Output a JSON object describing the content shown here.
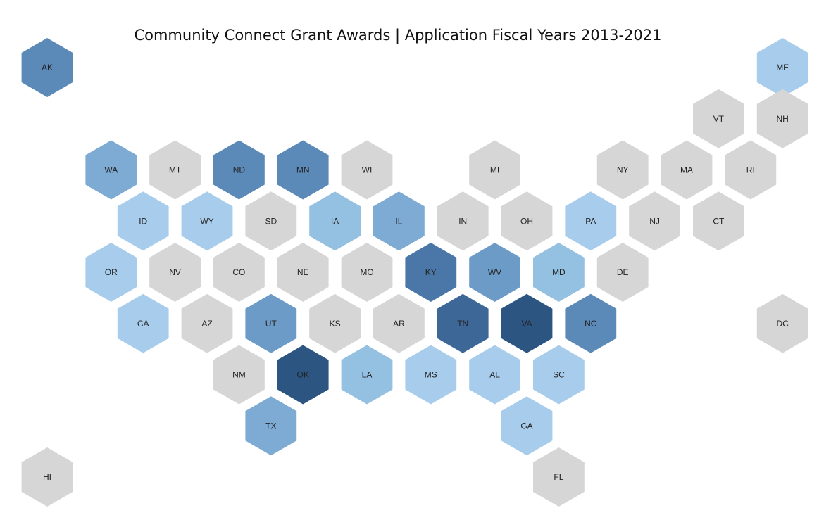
{
  "title": "Community Connect Grant Awards | Application Fiscal Years 2013-2021",
  "legend": null,
  "palette": {
    "none": "#d6d6d6",
    "1": "#a8cdec",
    "2": "#94c0e2",
    "3": "#7eabd4",
    "4": "#6c9bc8",
    "5": "#5b89b8",
    "6": "#4a77a7",
    "7": "#3d6797",
    "8": "#2c5582"
  },
  "states": [
    {
      "code": "AK",
      "row": 0,
      "col": 0,
      "level": 5
    },
    {
      "code": "ME",
      "row": 0,
      "col": 11.5,
      "level": 1
    },
    {
      "code": "VT",
      "row": 1,
      "col": 10,
      "level": 0
    },
    {
      "code": "NH",
      "row": 1,
      "col": 11,
      "level": 0
    },
    {
      "code": "WA",
      "row": 2,
      "col": 1,
      "level": 3
    },
    {
      "code": "MT",
      "row": 2,
      "col": 2,
      "level": 0
    },
    {
      "code": "ND",
      "row": 2,
      "col": 3,
      "level": 5
    },
    {
      "code": "MN",
      "row": 2,
      "col": 4,
      "level": 5
    },
    {
      "code": "WI",
      "row": 2,
      "col": 5,
      "level": 0
    },
    {
      "code": "MI",
      "row": 2,
      "col": 7,
      "level": 0
    },
    {
      "code": "NY",
      "row": 2,
      "col": 9,
      "level": 0
    },
    {
      "code": "MA",
      "row": 2,
      "col": 10,
      "level": 0
    },
    {
      "code": "RI",
      "row": 2,
      "col": 11,
      "level": 0
    },
    {
      "code": "ID",
      "row": 3,
      "col": 1,
      "level": 1
    },
    {
      "code": "WY",
      "row": 3,
      "col": 2,
      "level": 1
    },
    {
      "code": "SD",
      "row": 3,
      "col": 3,
      "level": 0
    },
    {
      "code": "IA",
      "row": 3,
      "col": 4,
      "level": 2
    },
    {
      "code": "IL",
      "row": 3,
      "col": 5,
      "level": 3
    },
    {
      "code": "IN",
      "row": 3,
      "col": 6,
      "level": 0
    },
    {
      "code": "OH",
      "row": 3,
      "col": 7,
      "level": 0
    },
    {
      "code": "PA",
      "row": 3,
      "col": 8,
      "level": 1
    },
    {
      "code": "NJ",
      "row": 3,
      "col": 9,
      "level": 0
    },
    {
      "code": "CT",
      "row": 3,
      "col": 10,
      "level": 0
    },
    {
      "code": "OR",
      "row": 4,
      "col": 1,
      "level": 1
    },
    {
      "code": "NV",
      "row": 4,
      "col": 2,
      "level": 0
    },
    {
      "code": "CO",
      "row": 4,
      "col": 3,
      "level": 0
    },
    {
      "code": "NE",
      "row": 4,
      "col": 4,
      "level": 0
    },
    {
      "code": "MO",
      "row": 4,
      "col": 5,
      "level": 0
    },
    {
      "code": "KY",
      "row": 4,
      "col": 6,
      "level": 6
    },
    {
      "code": "WV",
      "row": 4,
      "col": 7,
      "level": 4
    },
    {
      "code": "MD",
      "row": 4,
      "col": 8,
      "level": 2
    },
    {
      "code": "DE",
      "row": 4,
      "col": 9,
      "level": 0
    },
    {
      "code": "CA",
      "row": 5,
      "col": 1,
      "level": 1
    },
    {
      "code": "AZ",
      "row": 5,
      "col": 2,
      "level": 0
    },
    {
      "code": "UT",
      "row": 5,
      "col": 3,
      "level": 4
    },
    {
      "code": "KS",
      "row": 5,
      "col": 4,
      "level": 0
    },
    {
      "code": "AR",
      "row": 5,
      "col": 5,
      "level": 0
    },
    {
      "code": "TN",
      "row": 5,
      "col": 6,
      "level": 7
    },
    {
      "code": "VA",
      "row": 5,
      "col": 7,
      "level": 8
    },
    {
      "code": "NC",
      "row": 5,
      "col": 8,
      "level": 5
    },
    {
      "code": "DC",
      "row": 5,
      "col": 11,
      "level": 0
    },
    {
      "code": "NM",
      "row": 6,
      "col": 3,
      "level": 0
    },
    {
      "code": "OK",
      "row": 6,
      "col": 4,
      "level": 8
    },
    {
      "code": "LA",
      "row": 6,
      "col": 5,
      "level": 2
    },
    {
      "code": "MS",
      "row": 6,
      "col": 6,
      "level": 1
    },
    {
      "code": "AL",
      "row": 6,
      "col": 7,
      "level": 1
    },
    {
      "code": "SC",
      "row": 6,
      "col": 8,
      "level": 1
    },
    {
      "code": "TX",
      "row": 7,
      "col": 3,
      "level": 3
    },
    {
      "code": "GA",
      "row": 7,
      "col": 7,
      "level": 1
    },
    {
      "code": "HI",
      "row": 8,
      "col": 0,
      "level": 0
    },
    {
      "code": "FL",
      "row": 8,
      "col": 8,
      "level": 0
    }
  ]
}
